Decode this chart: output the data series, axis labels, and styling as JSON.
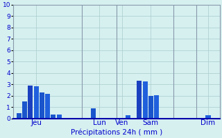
{
  "xlabel": "Précipitations 24h ( mm )",
  "ylim": [
    0,
    10
  ],
  "yticks": [
    0,
    1,
    2,
    3,
    4,
    5,
    6,
    7,
    8,
    9,
    10
  ],
  "background_color": "#d6f0f0",
  "grid_color": "#aacccc",
  "text_color": "#0000cc",
  "bar_dark": "#1a40c0",
  "bar_mid": "#2060cc",
  "vline_color": "#8899aa",
  "xline_color": "#0000aa",
  "day_labels": [
    "Jeu",
    "Lun",
    "Ven",
    "Sam",
    "Dim"
  ],
  "bars": [
    {
      "x": 1,
      "height": 0.5,
      "color": "#1a55cc"
    },
    {
      "x": 2,
      "height": 1.5,
      "color": "#1a55cc"
    },
    {
      "x": 3,
      "height": 2.9,
      "color": "#1a40c0"
    },
    {
      "x": 4,
      "height": 2.85,
      "color": "#2060dd"
    },
    {
      "x": 5,
      "height": 2.3,
      "color": "#1a55cc"
    },
    {
      "x": 6,
      "height": 2.2,
      "color": "#2060dd"
    },
    {
      "x": 7,
      "height": 0.35,
      "color": "#1a55cc"
    },
    {
      "x": 8,
      "height": 0.35,
      "color": "#2060dd"
    },
    {
      "x": 14,
      "height": 0.9,
      "color": "#1a55cc"
    },
    {
      "x": 20,
      "height": 0.3,
      "color": "#2060dd"
    },
    {
      "x": 22,
      "height": 3.3,
      "color": "#1a40c0"
    },
    {
      "x": 23,
      "height": 3.25,
      "color": "#2060dd"
    },
    {
      "x": 24,
      "height": 2.0,
      "color": "#1a55cc"
    },
    {
      "x": 25,
      "height": 2.05,
      "color": "#2060dd"
    },
    {
      "x": 34,
      "height": 0.3,
      "color": "#2060dd"
    }
  ],
  "vlines": [
    12,
    18,
    28,
    32
  ],
  "day_tick_positions": [
    4,
    15,
    19,
    24,
    34
  ],
  "xlim": [
    0,
    36
  ],
  "bar_width": 0.85,
  "figsize": [
    3.2,
    2.0
  ],
  "dpi": 100
}
